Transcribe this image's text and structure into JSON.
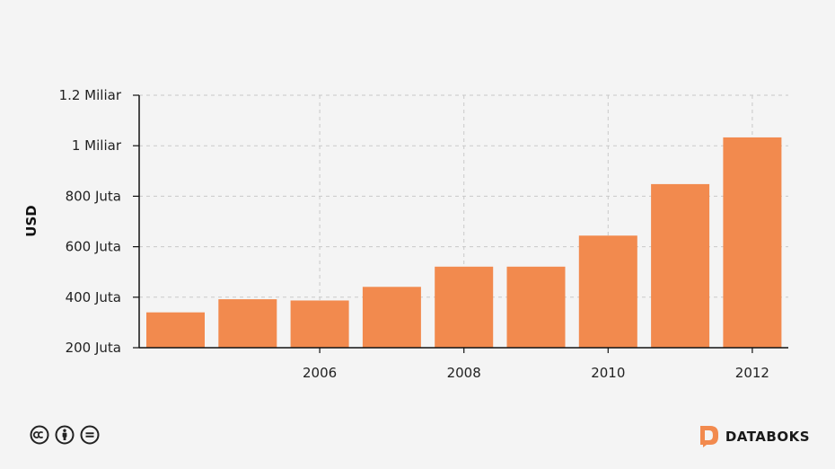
{
  "chart_data": {
    "type": "bar",
    "title": "",
    "xlabel": "",
    "ylabel": "USD",
    "x": [
      2004,
      2005,
      2006,
      2007,
      2008,
      2009,
      2010,
      2011,
      2012
    ],
    "values": [
      340000000,
      392000000,
      387000000,
      441000000,
      521000000,
      521000000,
      644000000,
      848000000,
      1033000000
    ],
    "ylim": [
      200000000,
      1200000000
    ],
    "y_ticks": [
      {
        "value": 200000000,
        "label": "200 Juta"
      },
      {
        "value": 400000000,
        "label": "400 Juta"
      },
      {
        "value": 600000000,
        "label": "600 Juta"
      },
      {
        "value": 800000000,
        "label": "800 Juta"
      },
      {
        "value": 1000000000,
        "label": "1 Miliar"
      },
      {
        "value": 1200000000,
        "label": "1.2 Miliar"
      }
    ],
    "x_ticks": [
      {
        "value": 2006,
        "label": "2006"
      },
      {
        "value": 2008,
        "label": "2008"
      },
      {
        "value": 2010,
        "label": "2010"
      },
      {
        "value": 2012,
        "label": "2012"
      }
    ],
    "grid": true,
    "bar_color": "#f28a4e"
  },
  "footer": {
    "brand_name": "DATABOKS",
    "brand_color": "#f28a4e",
    "license_icons": [
      "cc-icon",
      "by-icon",
      "nd-icon"
    ]
  }
}
